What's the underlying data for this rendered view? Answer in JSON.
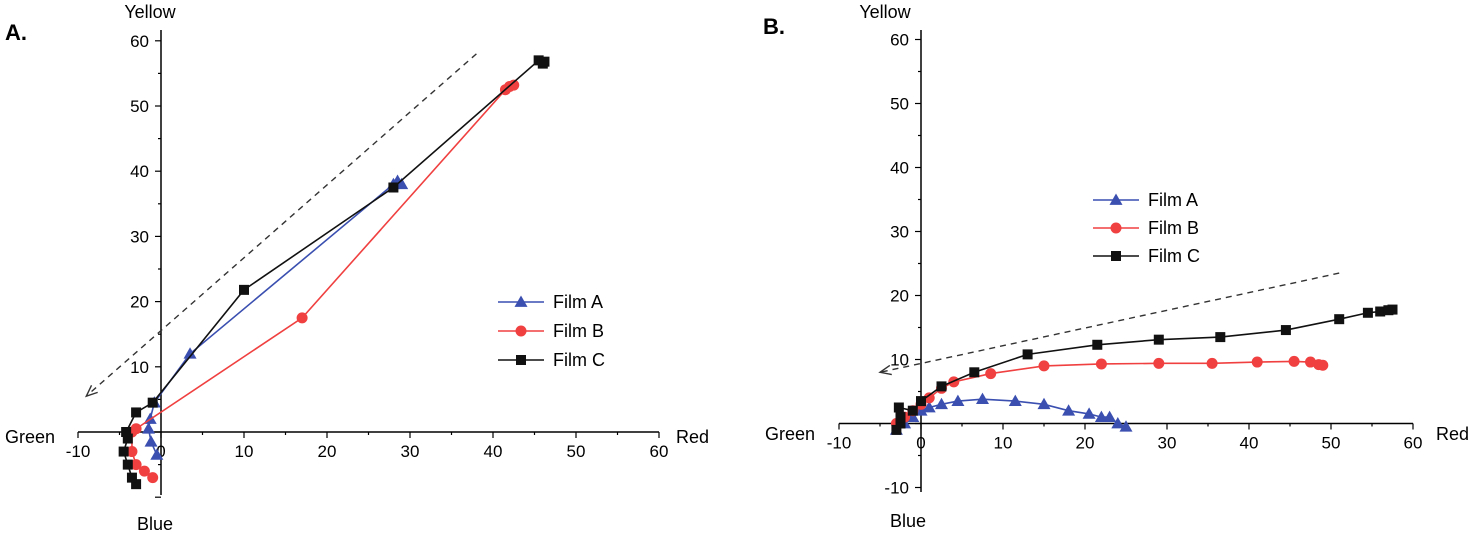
{
  "chart_data": [
    {
      "type": "scatter",
      "panel_label": "A.",
      "axis_labels": {
        "top": "Yellow",
        "right": "Red",
        "left": "Green",
        "bottom": "Blue"
      },
      "xlim": [
        -10,
        60
      ],
      "ylim": [
        -10,
        60
      ],
      "x_ticks": [
        -10,
        0,
        10,
        20,
        30,
        40,
        50,
        60
      ],
      "x_tick_labels": [
        "-10",
        "0",
        "10",
        "20",
        "30",
        "40",
        "50",
        "60"
      ],
      "y_ticks": [
        10,
        20,
        30,
        40,
        50,
        60
      ],
      "y_tick_labels": [
        "10",
        "20",
        "30",
        "40",
        "50",
        "60"
      ],
      "grid": false,
      "legend_position": "center-right",
      "series": [
        {
          "name": "Film A",
          "color": "#3a4fb0",
          "marker": "triangle",
          "points": [
            [
              -0.5,
              -3.5
            ],
            [
              -1.2,
              -1.5
            ],
            [
              -1.5,
              0.5
            ],
            [
              -1.3,
              2
            ],
            [
              -0.8,
              4.5
            ],
            [
              3.5,
              12
            ],
            [
              28,
              38
            ],
            [
              29,
              38
            ],
            [
              28.5,
              38.5
            ]
          ]
        },
        {
          "name": "Film B",
          "color": "#f04040",
          "marker": "circle",
          "points": [
            [
              -1,
              -7
            ],
            [
              -2,
              -6
            ],
            [
              -3,
              -5
            ],
            [
              -3.5,
              -3
            ],
            [
              -3.5,
              0
            ],
            [
              -3,
              0.5
            ],
            [
              17,
              17.5
            ],
            [
              41.5,
              52.5
            ],
            [
              42,
              53
            ],
            [
              42.5,
              53.2
            ]
          ]
        },
        {
          "name": "Film C",
          "color": "#111111",
          "marker": "square",
          "points": [
            [
              -3,
              -8
            ],
            [
              -3.5,
              -7
            ],
            [
              -4,
              -5
            ],
            [
              -4.5,
              -3
            ],
            [
              -4,
              -1
            ],
            [
              -4.2,
              0
            ],
            [
              -3,
              3
            ],
            [
              -1,
              4.5
            ],
            [
              10,
              21.8
            ],
            [
              28,
              37.5
            ],
            [
              45.5,
              57
            ],
            [
              46,
              56.5
            ],
            [
              46.2,
              56.8
            ]
          ]
        }
      ],
      "dashed_arrow": {
        "from": [
          38,
          58
        ],
        "to": [
          -9,
          5.5
        ]
      }
    },
    {
      "type": "scatter",
      "panel_label": "B.",
      "axis_labels": {
        "top": "Yellow",
        "right": "Red",
        "left": "Green",
        "bottom": "Blue"
      },
      "xlim": [
        -10,
        60
      ],
      "ylim": [
        -10,
        60
      ],
      "x_ticks": [
        -10,
        0,
        10,
        20,
        30,
        40,
        50,
        60
      ],
      "x_tick_labels": [
        "-10",
        "0",
        "10",
        "20",
        "30",
        "40",
        "50",
        "60"
      ],
      "y_ticks": [
        -10,
        10,
        20,
        30,
        40,
        50,
        60
      ],
      "y_tick_labels": [
        "-10",
        "10",
        "20",
        "30",
        "40",
        "50",
        "60"
      ],
      "grid": false,
      "legend_position": "center",
      "series": [
        {
          "name": "Film A",
          "color": "#3a4fb0",
          "marker": "triangle",
          "points": [
            [
              -3,
              -1
            ],
            [
              -2,
              0
            ],
            [
              -1,
              1
            ],
            [
              0,
              2
            ],
            [
              1,
              2.5
            ],
            [
              2.5,
              3
            ],
            [
              4.5,
              3.5
            ],
            [
              7.5,
              3.8
            ],
            [
              11.5,
              3.5
            ],
            [
              15,
              3
            ],
            [
              18,
              2
            ],
            [
              20.5,
              1.5
            ],
            [
              22,
              1
            ],
            [
              23,
              1
            ],
            [
              24,
              0
            ],
            [
              25,
              -0.5
            ]
          ]
        },
        {
          "name": "Film B",
          "color": "#f04040",
          "marker": "circle",
          "points": [
            [
              -3,
              0
            ],
            [
              -2,
              1
            ],
            [
              -1,
              2
            ],
            [
              0,
              3
            ],
            [
              1,
              4
            ],
            [
              2.5,
              5.5
            ],
            [
              4,
              6.5
            ],
            [
              8.5,
              7.8
            ],
            [
              15,
              9
            ],
            [
              22,
              9.3
            ],
            [
              29,
              9.4
            ],
            [
              35.5,
              9.4
            ],
            [
              41,
              9.6
            ],
            [
              45.5,
              9.7
            ],
            [
              47.5,
              9.6
            ],
            [
              48.5,
              9.2
            ],
            [
              49,
              9.1
            ]
          ]
        },
        {
          "name": "Film C",
          "color": "#111111",
          "marker": "square",
          "points": [
            [
              -3,
              -1
            ],
            [
              -2.5,
              0
            ],
            [
              -2.5,
              1
            ],
            [
              -2.7,
              2.5
            ],
            [
              -1,
              2
            ],
            [
              0,
              3.5
            ],
            [
              2.5,
              5.8
            ],
            [
              6.5,
              8
            ],
            [
              13,
              10.8
            ],
            [
              21.5,
              12.3
            ],
            [
              29,
              13.1
            ],
            [
              36.5,
              13.5
            ],
            [
              44.5,
              14.6
            ],
            [
              51,
              16.3
            ],
            [
              54.5,
              17.3
            ],
            [
              56,
              17.5
            ],
            [
              57,
              17.7
            ],
            [
              57.5,
              17.8
            ]
          ]
        }
      ],
      "dashed_arrow": {
        "from": [
          51,
          23.5
        ],
        "to": [
          -5,
          8
        ]
      }
    }
  ]
}
